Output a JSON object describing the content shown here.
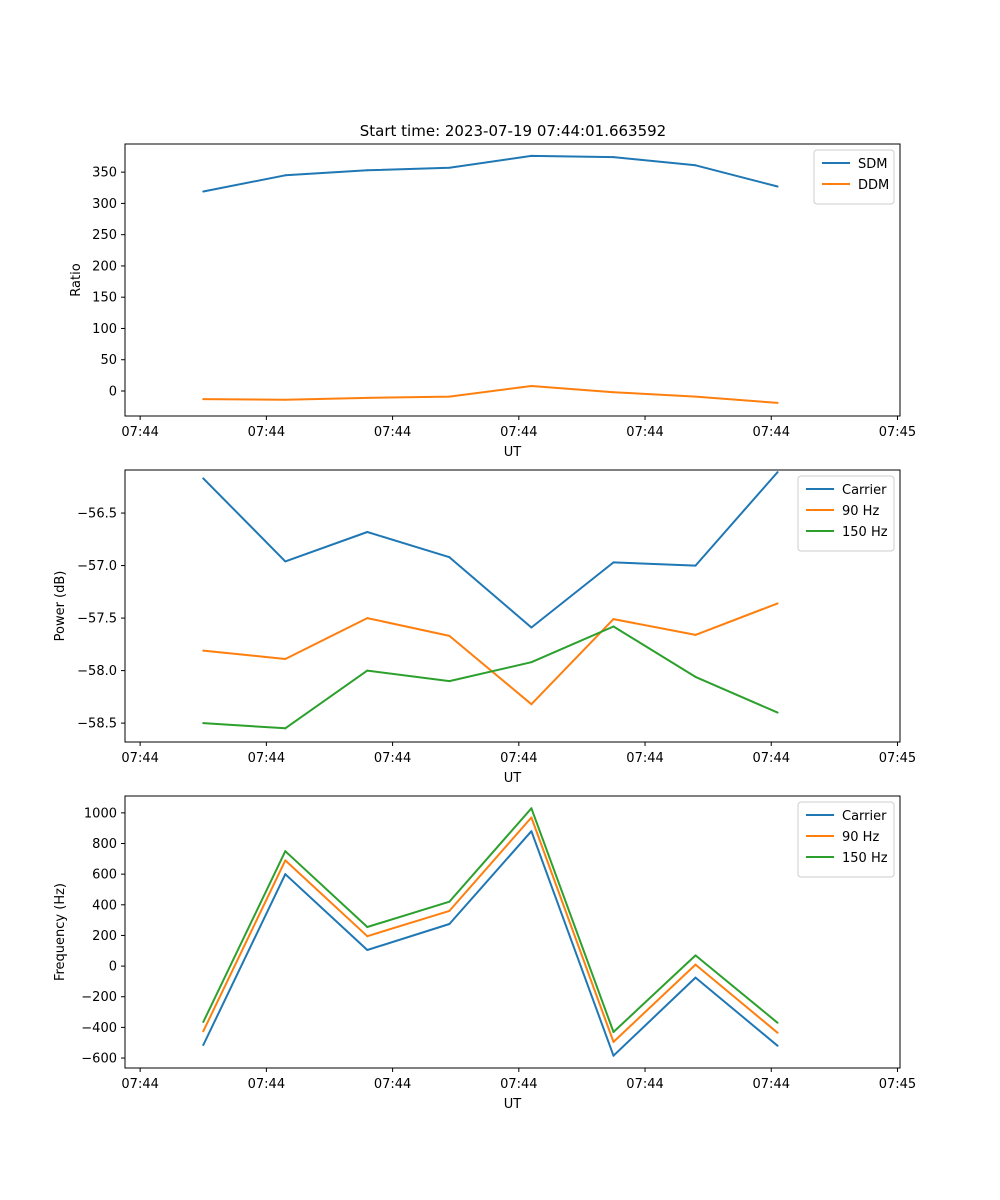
{
  "figure": {
    "title": "Start time: 2023-07-19 07:44:01.663592"
  },
  "colors": {
    "blue": "#1f77b4",
    "orange": "#ff7f0e",
    "green": "#2ca02c"
  },
  "chart_data": [
    {
      "type": "line",
      "title": "Start time: 2023-07-19 07:44:01.663592",
      "xlabel": "UT",
      "ylabel": "Ratio",
      "x_tick_labels": [
        "07:44",
        "07:44",
        "07:44",
        "07:44",
        "07:44",
        "07:44",
        "07:45"
      ],
      "x_tick_positions": [
        0,
        1,
        2,
        3,
        4,
        5,
        6
      ],
      "xlim": [
        -0.12,
        6.02
      ],
      "x": [
        0.5,
        1.15,
        1.8,
        2.45,
        3.1,
        3.75,
        4.4,
        5.05
      ],
      "ylim": [
        -40,
        395
      ],
      "yticks": [
        0,
        50,
        100,
        150,
        200,
        250,
        300,
        350
      ],
      "legend": "top-right",
      "series": [
        {
          "name": "SDM",
          "color": "#1f77b4",
          "values": [
            319,
            345,
            353,
            357,
            376,
            374,
            361,
            327
          ]
        },
        {
          "name": "DDM",
          "color": "#ff7f0e",
          "values": [
            -13,
            -14,
            -11,
            -9,
            8,
            -2,
            -9,
            -19
          ]
        }
      ]
    },
    {
      "type": "line",
      "xlabel": "UT",
      "ylabel": "Power (dB)",
      "x_tick_labels": [
        "07:44",
        "07:44",
        "07:44",
        "07:44",
        "07:44",
        "07:44",
        "07:45"
      ],
      "x_tick_positions": [
        0,
        1,
        2,
        3,
        4,
        5,
        6
      ],
      "xlim": [
        -0.12,
        6.02
      ],
      "x": [
        0.5,
        1.15,
        1.8,
        2.45,
        3.1,
        3.75,
        4.4,
        5.05
      ],
      "ylim": [
        -58.68,
        -56.09
      ],
      "yticks": [
        -58.5,
        -58.0,
        -57.5,
        -57.0,
        -56.5
      ],
      "ytick_labels": [
        "−58.5",
        "−58.0",
        "−57.5",
        "−57.0",
        "−56.5"
      ],
      "legend": "top-right",
      "series": [
        {
          "name": "Carrier",
          "color": "#1f77b4",
          "values": [
            -56.17,
            -56.96,
            -56.68,
            -56.92,
            -57.59,
            -56.97,
            -57.0,
            -56.11
          ]
        },
        {
          "name": "90 Hz",
          "color": "#ff7f0e",
          "values": [
            -57.81,
            -57.89,
            -57.5,
            -57.67,
            -58.32,
            -57.51,
            -57.66,
            -57.36
          ]
        },
        {
          "name": "150 Hz",
          "color": "#2ca02c",
          "values": [
            -58.5,
            -58.55,
            -58.0,
            -58.1,
            -57.92,
            -57.58,
            -58.06,
            -58.4
          ]
        }
      ]
    },
    {
      "type": "line",
      "xlabel": "UT",
      "ylabel": "Frequency (Hz)",
      "x_tick_labels": [
        "07:44",
        "07:44",
        "07:44",
        "07:44",
        "07:44",
        "07:44",
        "07:45"
      ],
      "x_tick_positions": [
        0,
        1,
        2,
        3,
        4,
        5,
        6
      ],
      "xlim": [
        -0.12,
        6.02
      ],
      "x": [
        0.5,
        1.15,
        1.8,
        2.45,
        3.1,
        3.75,
        4.4,
        5.05
      ],
      "ylim": [
        -665,
        1110
      ],
      "yticks": [
        -600,
        -400,
        -200,
        0,
        200,
        400,
        600,
        800,
        1000
      ],
      "ytick_labels": [
        "−600",
        "−400",
        "−200",
        "0",
        "200",
        "400",
        "600",
        "800",
        "1000"
      ],
      "legend": "top-right",
      "series": [
        {
          "name": "Carrier",
          "color": "#1f77b4",
          "values": [
            -515,
            600,
            105,
            275,
            880,
            -585,
            -75,
            -520
          ]
        },
        {
          "name": "90 Hz",
          "color": "#ff7f0e",
          "values": [
            -425,
            690,
            195,
            360,
            970,
            -495,
            10,
            -435
          ]
        },
        {
          "name": "150 Hz",
          "color": "#2ca02c",
          "values": [
            -365,
            750,
            255,
            420,
            1030,
            -430,
            70,
            -370
          ]
        }
      ]
    }
  ]
}
